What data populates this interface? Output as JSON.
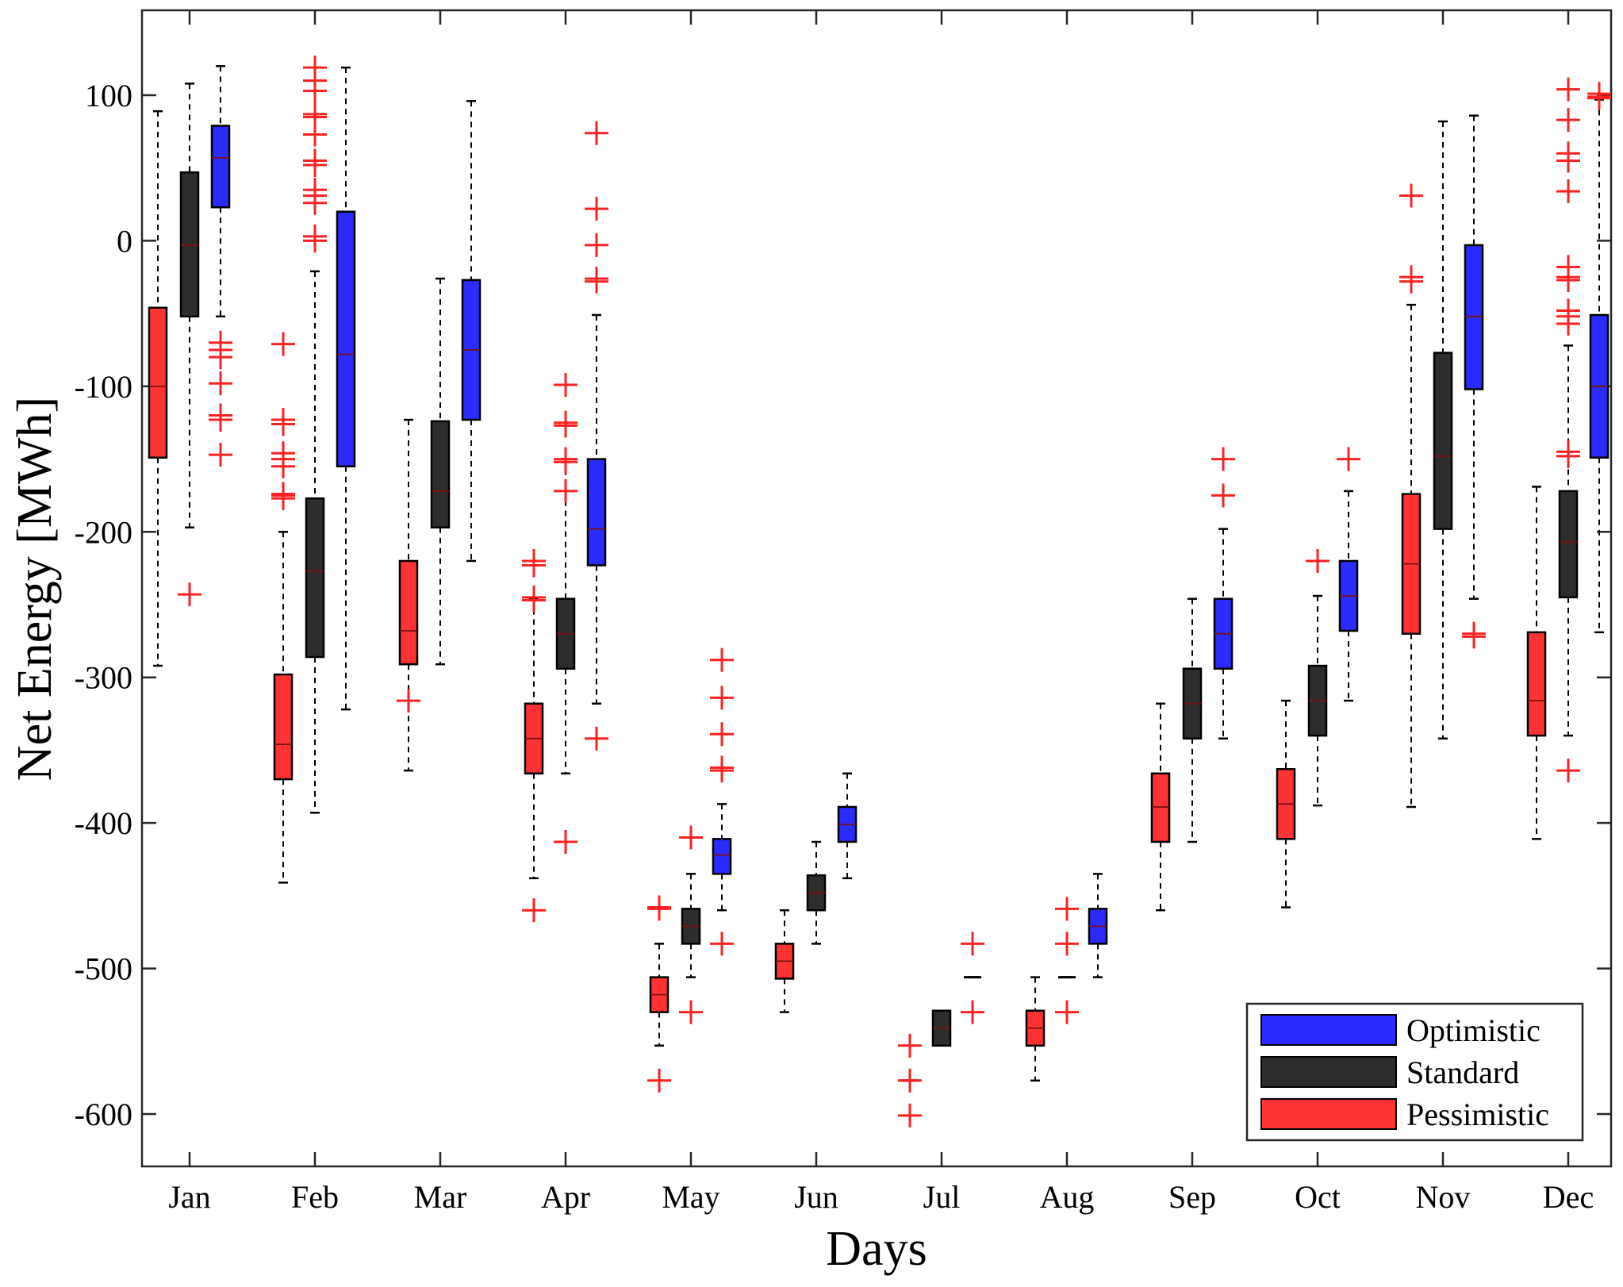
{
  "chart_data": {
    "type": "boxplot",
    "title": "",
    "xlabel": "Days",
    "ylabel": "Net Energy [MWh]",
    "ylim": [
      -640,
      155
    ],
    "yticks": [
      100,
      0,
      -100,
      -200,
      -300,
      -400,
      -500,
      -600
    ],
    "ytick_labels": [
      "100",
      "0",
      "-100",
      "-200",
      "-300",
      "-400",
      "-500",
      "-600"
    ],
    "categories": [
      "Jan",
      "Feb",
      "Mar",
      "Apr",
      "May",
      "Jun",
      "Jul",
      "Aug",
      "Sep",
      "Oct",
      "Nov",
      "Dec"
    ],
    "legend_position": "bottom-right",
    "series": [
      {
        "name": "Optimistic",
        "color": "#2b2bff",
        "boxes": [
          {
            "month": "Jan",
            "whisker_low": -52,
            "q1": 23,
            "median": 57,
            "q3": 79,
            "whisker_high": 120,
            "outliers": [
              -70,
              -75,
              -80,
              -98,
              -120,
              -123,
              -147
            ]
          },
          {
            "month": "Feb",
            "whisker_low": -322,
            "q1": -155,
            "median": -78,
            "q3": 20,
            "whisker_high": 119,
            "outliers": []
          },
          {
            "month": "Mar",
            "whisker_low": -220,
            "q1": -123,
            "median": -75,
            "q3": -27,
            "whisker_high": 96,
            "outliers": []
          },
          {
            "month": "Apr",
            "whisker_low": -318,
            "q1": -223,
            "median": -198,
            "q3": -150,
            "whisker_high": -51,
            "outliers": [
              74,
              22,
              -3,
              -26,
              -28,
              -342
            ]
          },
          {
            "month": "May",
            "whisker_low": -460,
            "q1": -435,
            "median": -422,
            "q3": -411,
            "whisker_high": -387,
            "outliers": [
              -288,
              -314,
              -339,
              -362,
              -364,
              -483
            ]
          },
          {
            "month": "Jun",
            "whisker_low": -438,
            "q1": -413,
            "median": -401,
            "q3": -389,
            "whisker_high": -366,
            "outliers": []
          },
          {
            "month": "Jul",
            "whisker_low": -506,
            "q1": -506,
            "median": -506,
            "q3": -506,
            "whisker_high": -506,
            "outliers": [
              -483,
              -530
            ]
          },
          {
            "month": "Aug",
            "whisker_low": -506,
            "q1": -483,
            "median": -471,
            "q3": -459,
            "whisker_high": -435,
            "outliers": []
          },
          {
            "month": "Sep",
            "whisker_low": -342,
            "q1": -294,
            "median": -270,
            "q3": -246,
            "whisker_high": -198,
            "outliers": [
              -150,
              -175
            ]
          },
          {
            "month": "Oct",
            "whisker_low": -316,
            "q1": -268,
            "median": -244,
            "q3": -220,
            "whisker_high": -172,
            "outliers": [
              -150
            ]
          },
          {
            "month": "Nov",
            "whisker_low": -246,
            "q1": -102,
            "median": -52,
            "q3": -3,
            "whisker_high": 86,
            "outliers": [
              -270,
              -272
            ]
          },
          {
            "month": "Dec",
            "whisker_low": -269,
            "q1": -149,
            "median": -100,
            "q3": -51,
            "whisker_high": 97,
            "outliers": [
              98,
              101,
              99
            ]
          }
        ]
      },
      {
        "name": "Standard",
        "color": "#2d2d2d",
        "boxes": [
          {
            "month": "Jan",
            "whisker_low": -197,
            "q1": -52,
            "median": -3,
            "q3": 47,
            "whisker_high": 108,
            "outliers": [
              -243
            ]
          },
          {
            "month": "Feb",
            "whisker_low": -393,
            "q1": -286,
            "median": -227,
            "q3": -177,
            "whisker_high": -21,
            "outliers": []
          },
          {
            "month": "Mar",
            "whisker_low": -291,
            "q1": -197,
            "median": -172,
            "q3": -124,
            "whisker_high": -26,
            "outliers": []
          },
          {
            "month": "Apr",
            "whisker_low": -366,
            "q1": -294,
            "median": -270,
            "q3": -246,
            "whisker_high": -150,
            "outliers": [
              -99,
              -125,
              -127,
              -150,
              -152,
              -172,
              -413
            ]
          },
          {
            "month": "May",
            "whisker_low": -506,
            "q1": -483,
            "median": -471,
            "q3": -459,
            "whisker_high": -435,
            "outliers": [
              -410,
              -530
            ]
          },
          {
            "month": "Jun",
            "whisker_low": -483,
            "q1": -460,
            "median": -448,
            "q3": -436,
            "whisker_high": -413,
            "outliers": []
          },
          {
            "month": "Jul",
            "whisker_low": -553,
            "q1": -553,
            "median": -541,
            "q3": -529,
            "whisker_high": -529,
            "outliers": []
          },
          {
            "month": "Aug",
            "whisker_low": -506,
            "q1": -506,
            "median": -506,
            "q3": -506,
            "whisker_high": -506,
            "outliers": [
              -459,
              -483,
              -530
            ]
          },
          {
            "month": "Sep",
            "whisker_low": -413,
            "q1": -342,
            "median": -318,
            "q3": -294,
            "whisker_high": -246,
            "outliers": []
          },
          {
            "month": "Oct",
            "whisker_low": -388,
            "q1": -340,
            "median": -316,
            "q3": -292,
            "whisker_high": -244,
            "outliers": [
              -220
            ]
          },
          {
            "month": "Nov",
            "whisker_low": -342,
            "q1": -198,
            "median": -148,
            "q3": -77,
            "whisker_high": 82,
            "outliers": []
          },
          {
            "month": "Dec",
            "whisker_low": -340,
            "q1": -245,
            "median": -207,
            "q3": -172,
            "whisker_high": -72,
            "outliers": [
              -145,
              -148,
              104,
              83,
              60,
              55,
              34,
              -18,
              -25,
              -27,
              -48,
              -52,
              -57,
              -364
            ]
          }
        ]
      },
      {
        "name": "Pessimistic",
        "color": "#ff3333",
        "boxes": [
          {
            "month": "Jan",
            "whisker_low": -292,
            "q1": -149,
            "median": -100,
            "q3": -46,
            "whisker_high": 89,
            "outliers": []
          },
          {
            "month": "Feb",
            "whisker_low": -441,
            "q1": -370,
            "median": -346,
            "q3": -298,
            "whisker_high": -200,
            "outliers": [
              -71,
              -123,
              -126,
              -146,
              -150,
              -155,
              -174,
              -175,
              -177
            ]
          },
          {
            "month": "Mar",
            "whisker_low": -364,
            "q1": -291,
            "median": -268,
            "q3": -220,
            "whisker_high": -123,
            "outliers": [
              -316
            ]
          },
          {
            "month": "Apr",
            "whisker_low": -438,
            "q1": -366,
            "median": -342,
            "q3": -318,
            "whisker_high": -246,
            "outliers": [
              -220,
              -223,
              -245,
              -247,
              -460
            ]
          },
          {
            "month": "May",
            "whisker_low": -553,
            "q1": -530,
            "median": -518,
            "q3": -506,
            "whisker_high": -483,
            "outliers": [
              -458,
              -459,
              -577
            ]
          },
          {
            "month": "Jun",
            "whisker_low": -530,
            "q1": -507,
            "median": -495,
            "q3": -483,
            "whisker_high": -460,
            "outliers": []
          },
          {
            "month": "Jul",
            "whisker_low": -577,
            "q1": -577,
            "median": -577,
            "q3": -577,
            "whisker_high": -577,
            "outliers": [
              -553,
              -577,
              -601
            ]
          },
          {
            "month": "Aug",
            "whisker_low": -577,
            "q1": -553,
            "median": -541,
            "q3": -529,
            "whisker_high": -506,
            "outliers": []
          },
          {
            "month": "Sep",
            "whisker_low": -460,
            "q1": -413,
            "median": -389,
            "q3": -366,
            "whisker_high": -318,
            "outliers": []
          },
          {
            "month": "Oct",
            "whisker_low": -458,
            "q1": -411,
            "median": -387,
            "q3": -363,
            "whisker_high": -316,
            "outliers": []
          },
          {
            "month": "Nov",
            "whisker_low": -389,
            "q1": -270,
            "median": -222,
            "q3": -174,
            "whisker_high": -44,
            "outliers": [
              31,
              -25,
              -28
            ]
          },
          {
            "month": "Dec",
            "whisker_low": -411,
            "q1": -340,
            "median": -316,
            "q3": -269,
            "whisker_high": -169,
            "outliers": []
          }
        ]
      }
    ],
    "extra_outliers_feb_high": [
      119,
      110,
      103,
      87,
      85,
      73,
      55,
      52,
      35,
      31,
      26,
      3,
      0
    ]
  }
}
